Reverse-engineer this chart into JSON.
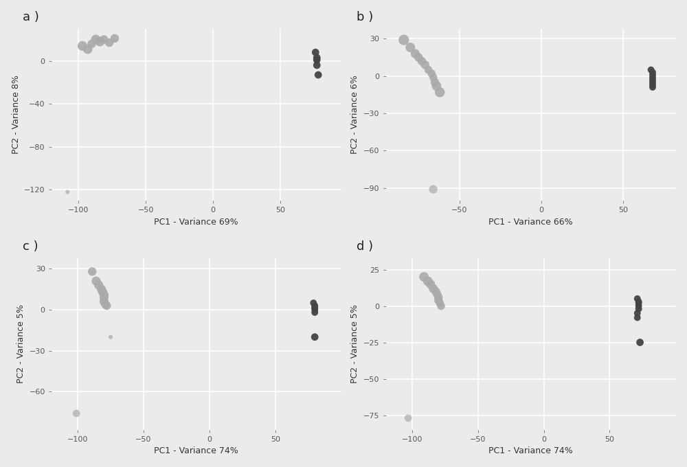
{
  "background_color": "#ebebeb",
  "plot_bg_color": "#ebebeb",
  "grid_color": "#ffffff",
  "panels": [
    {
      "label": "a )",
      "pc1_label": "PC1 - Variance 69%",
      "pc2_label": "PC2 - Variance 8%",
      "xlim": [
        -120,
        95
      ],
      "ylim": [
        -130,
        30
      ],
      "xticks": [
        -100,
        -50,
        0,
        50
      ],
      "yticks": [
        0,
        -40,
        -80,
        -120
      ],
      "light_gray_points": [
        [
          -97,
          14
        ],
        [
          -93,
          11
        ],
        [
          -90,
          16
        ],
        [
          -87,
          20
        ],
        [
          -84,
          18
        ],
        [
          -81,
          20
        ],
        [
          -77,
          17
        ],
        [
          -73,
          21
        ]
      ],
      "light_gray_sizes": [
        100,
        100,
        80,
        100,
        100,
        80,
        80,
        80
      ],
      "dark_gray_points": [
        [
          76,
          8
        ],
        [
          77,
          3
        ],
        [
          77,
          1
        ],
        [
          77,
          -4
        ],
        [
          78,
          -13
        ]
      ],
      "dark_gray_sizes": [
        60,
        60,
        60,
        60,
        60
      ],
      "outlier_light": [
        [
          -108,
          -122
        ]
      ],
      "outlier_light_sizes": [
        20
      ],
      "outlier_dark": [],
      "outlier_dark_sizes": []
    },
    {
      "label": "b )",
      "pc1_label": "PC1 - Variance 66%",
      "pc2_label": "PC2 - Variance 6%",
      "xlim": [
        -95,
        82
      ],
      "ylim": [
        -100,
        38
      ],
      "xticks": [
        -50,
        0,
        50
      ],
      "yticks": [
        30,
        0,
        -30,
        -60,
        -90
      ],
      "light_gray_points": [
        [
          -84,
          29
        ],
        [
          -80,
          23
        ],
        [
          -77,
          18
        ],
        [
          -75,
          15
        ],
        [
          -73,
          12
        ],
        [
          -71,
          9
        ],
        [
          -69,
          5
        ],
        [
          -67,
          2
        ],
        [
          -66,
          -1
        ],
        [
          -65,
          -5
        ],
        [
          -64,
          -8
        ],
        [
          -62,
          -13
        ]
      ],
      "light_gray_sizes": [
        120,
        100,
        90,
        80,
        80,
        80,
        70,
        70,
        70,
        80,
        100,
        110
      ],
      "dark_gray_points": [
        [
          67,
          5
        ],
        [
          68,
          3
        ],
        [
          68,
          1
        ],
        [
          68,
          -1
        ],
        [
          68,
          -3
        ],
        [
          68,
          -5
        ],
        [
          68,
          -7
        ],
        [
          68,
          -9
        ]
      ],
      "dark_gray_sizes": [
        50,
        50,
        50,
        50,
        50,
        50,
        50,
        50
      ],
      "outlier_light": [
        [
          -66,
          -91
        ]
      ],
      "outlier_light_sizes": [
        80
      ],
      "outlier_dark": [],
      "outlier_dark_sizes": []
    },
    {
      "label": "c )",
      "pc1_label": "PC1 - Variance 74%",
      "pc2_label": "PC2 - Variance 5%",
      "xlim": [
        -120,
        100
      ],
      "ylim": [
        -88,
        38
      ],
      "xticks": [
        -100,
        -50,
        0,
        50
      ],
      "yticks": [
        30,
        0,
        -30,
        -60
      ],
      "light_gray_points": [
        [
          -89,
          28
        ],
        [
          -86,
          21
        ],
        [
          -84,
          18
        ],
        [
          -82,
          15
        ],
        [
          -81,
          13
        ],
        [
          -80,
          11
        ],
        [
          -80,
          9
        ],
        [
          -80,
          6
        ],
        [
          -79,
          4
        ],
        [
          -78,
          3
        ]
      ],
      "light_gray_sizes": [
        80,
        90,
        90,
        90,
        90,
        90,
        90,
        90,
        80,
        80
      ],
      "dark_gray_points": [
        [
          79,
          5
        ],
        [
          80,
          3
        ],
        [
          80,
          2
        ],
        [
          80,
          1
        ],
        [
          80,
          0
        ],
        [
          80,
          -2
        ]
      ],
      "dark_gray_sizes": [
        50,
        50,
        50,
        50,
        50,
        50
      ],
      "outlier_light": [
        [
          -101,
          -76
        ]
      ],
      "outlier_light_sizes": [
        60
      ],
      "outlier_dark": [
        [
          80,
          -20
        ]
      ],
      "outlier_dark_sizes": [
        60
      ],
      "extra_outlier": [
        [
          -75,
          -20
        ]
      ],
      "extra_outlier_sizes": [
        20
      ],
      "extra_outlier_color": "#aaaaaa"
    },
    {
      "label": "d )",
      "pc1_label": "PC1 - Variance 74%",
      "pc2_label": "PC2 - Variance 5%",
      "xlim": [
        -120,
        100
      ],
      "ylim": [
        -85,
        33
      ],
      "xticks": [
        -100,
        -50,
        0,
        50
      ],
      "yticks": [
        25,
        0,
        -25,
        -50,
        -75
      ],
      "light_gray_points": [
        [
          -91,
          20
        ],
        [
          -88,
          17
        ],
        [
          -86,
          15
        ],
        [
          -84,
          12
        ],
        [
          -82,
          10
        ],
        [
          -81,
          8
        ],
        [
          -80,
          6
        ],
        [
          -80,
          4
        ],
        [
          -79,
          2
        ],
        [
          -78,
          0
        ]
      ],
      "light_gray_sizes": [
        100,
        100,
        90,
        90,
        80,
        80,
        80,
        80,
        70,
        70
      ],
      "dark_gray_points": [
        [
          71,
          5
        ],
        [
          72,
          3
        ],
        [
          72,
          2
        ],
        [
          72,
          0
        ],
        [
          72,
          -2
        ],
        [
          71,
          -5
        ],
        [
          71,
          -8
        ]
      ],
      "dark_gray_sizes": [
        50,
        50,
        50,
        50,
        50,
        50,
        50
      ],
      "outlier_light": [
        [
          -103,
          -77
        ]
      ],
      "outlier_light_sizes": [
        60
      ],
      "outlier_dark": [
        [
          73,
          -25
        ]
      ],
      "outlier_dark_sizes": [
        60
      ],
      "extra_outlier": [],
      "extra_outlier_sizes": [],
      "extra_outlier_color": "#aaaaaa"
    }
  ],
  "light_gray_color": "#aaaaaa",
  "dark_gray_color": "#444444",
  "label_fontsize": 13,
  "axis_label_fontsize": 9,
  "tick_fontsize": 8
}
